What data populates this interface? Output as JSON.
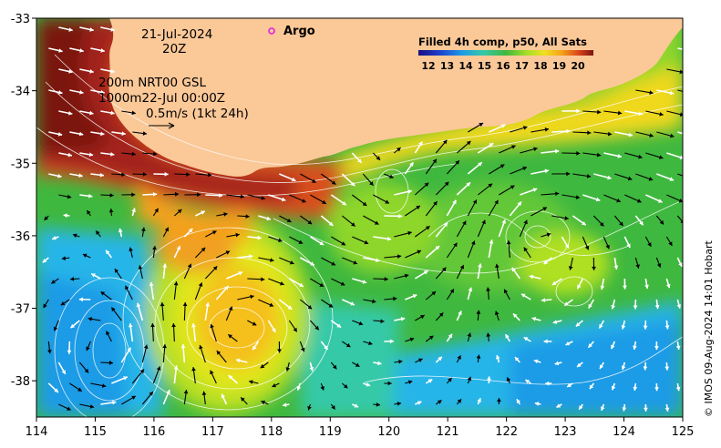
{
  "map": {
    "lon_range": [
      114,
      125
    ],
    "lat_range": [
      -38.5,
      -33
    ],
    "x_ticks": [
      "114",
      "115",
      "116",
      "117",
      "118",
      "119",
      "120",
      "121",
      "122",
      "123",
      "124",
      "125"
    ],
    "y_ticks": [
      "-33",
      "-34",
      "-35",
      "-36",
      "-37",
      "-38"
    ],
    "land_color": "#fbc898",
    "sst_palette": [
      "#1a0f80",
      "#1e3dcc",
      "#1e7be6",
      "#27b5e8",
      "#35c9a8",
      "#3fb83f",
      "#8ed629",
      "#e2e61e",
      "#f5b01a",
      "#e8691a",
      "#c2301e",
      "#7a1410"
    ]
  },
  "annotations": {
    "date": "21-Jul-2024",
    "time": "20Z",
    "depth_line1": "200m  NRT00 GSL",
    "depth_line2": "1000m22-Jul 00:00Z",
    "scale_label": "0.5m/s (1kt 24h)"
  },
  "legend": {
    "argo_label": "Argo",
    "argo_color": "#e020e0",
    "colorbar_title": "Filled 4h comp, p50, All Sats",
    "colorbar_ticks": [
      "12",
      "13",
      "14",
      "15",
      "16",
      "17",
      "18",
      "19",
      "20"
    ]
  },
  "credit": "© IMOS 09-Aug-2024 14:01 Hobart"
}
